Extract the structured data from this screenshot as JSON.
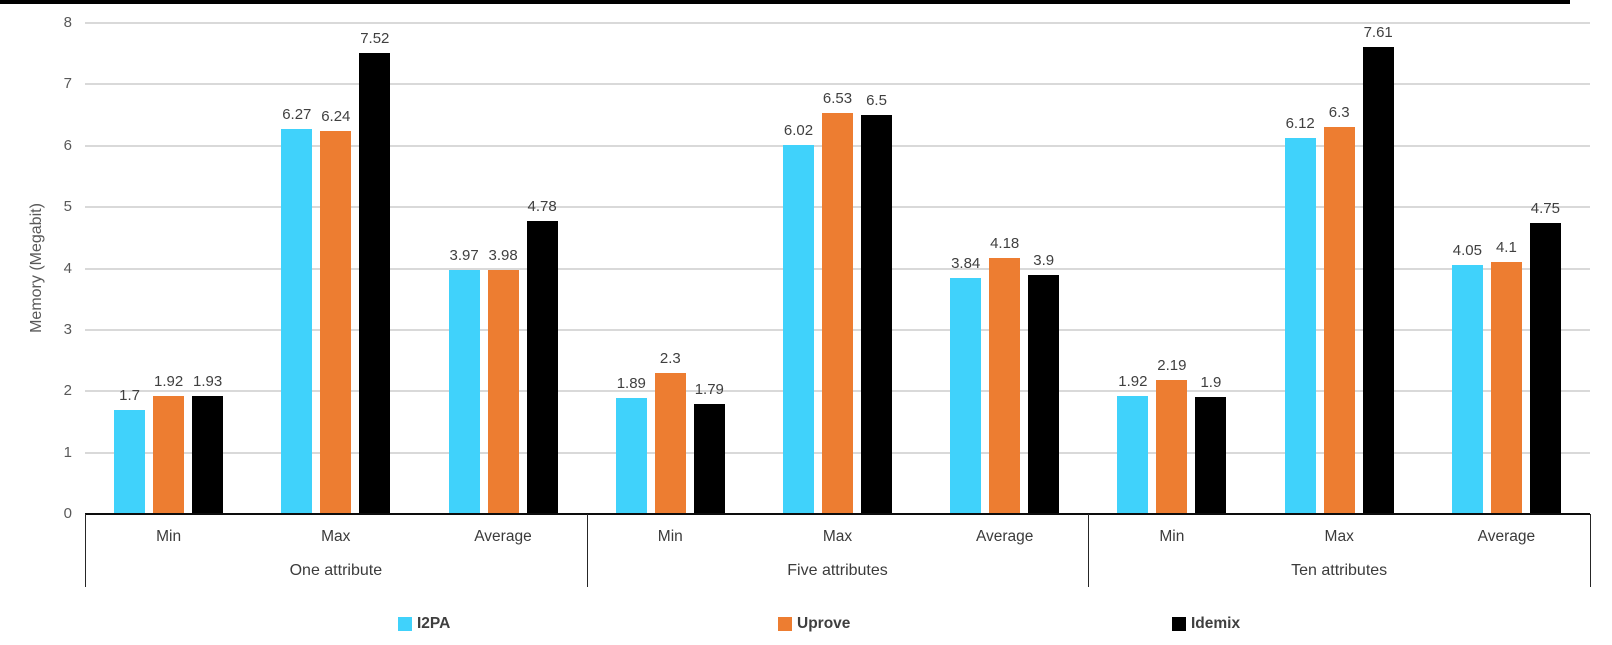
{
  "chart_data": {
    "type": "bar",
    "title": "",
    "xlabel": "",
    "ylabel": "Memory (Megabit)",
    "ylim": [
      0,
      8
    ],
    "yticks": [
      0,
      1,
      2,
      3,
      4,
      5,
      6,
      7,
      8
    ],
    "grid": true,
    "legend_position": "bottom",
    "group_labels": [
      "One attribute",
      "Five attributes",
      "Ten attributes"
    ],
    "categories": [
      "Min",
      "Max",
      "Average"
    ],
    "series": [
      {
        "name": "I2PA",
        "color": "#40d2fb",
        "values": [
          1.7,
          6.27,
          3.97,
          1.89,
          6.02,
          3.84,
          1.92,
          6.12,
          4.05
        ],
        "labels": [
          "1.7",
          "6.27",
          "3.97",
          "1.89",
          "6.02",
          "3.84",
          "1.92",
          "6.12",
          "4.05"
        ]
      },
      {
        "name": "Uprove",
        "color": "#ed7d31",
        "values": [
          1.92,
          6.24,
          3.98,
          2.3,
          6.53,
          4.18,
          2.19,
          6.3,
          4.1
        ],
        "labels": [
          "1.92",
          "6.24",
          "3.98",
          "2.3",
          "6.53",
          "4.18",
          "2.19",
          "6.3",
          "4.1"
        ]
      },
      {
        "name": "Idemix",
        "color": "#000000",
        "values": [
          1.93,
          7.52,
          4.78,
          1.79,
          6.5,
          3.9,
          1.9,
          7.61,
          4.75
        ],
        "labels": [
          "1.93",
          "7.52",
          "4.78",
          "1.79",
          "6.5",
          "3.9",
          "1.9",
          "7.61",
          "4.75"
        ]
      }
    ],
    "colors": {
      "gridline": "#d9d9d9",
      "axis_line": "#0d0d0d",
      "tick_text": "#595959",
      "label_text": "#404040"
    }
  }
}
